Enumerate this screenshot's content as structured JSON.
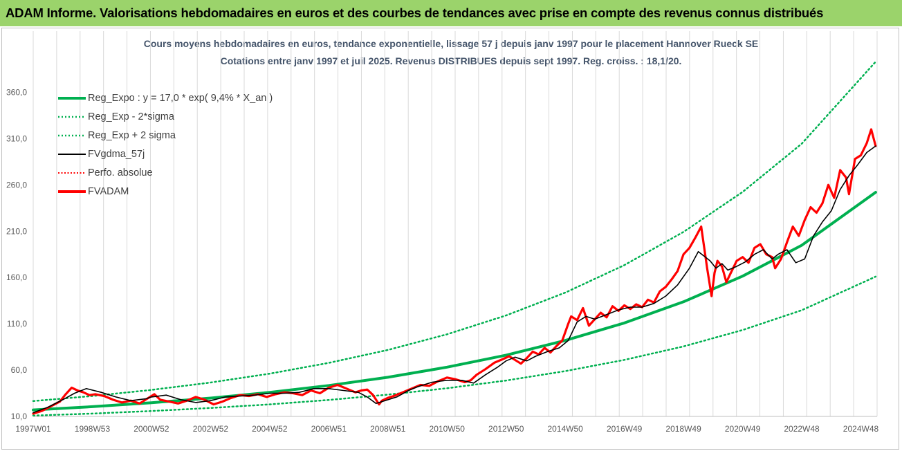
{
  "banner": {
    "title": "ADAM Informe. Valorisations hebdomadaires en euros et des courbes de tendances avec prise en compte des revenus connus distribués"
  },
  "colors": {
    "banner_bg": "#9bd36b",
    "trend_green": "#00b050",
    "price_red": "#ff0000",
    "smooth_black": "#000000",
    "title_text": "#44546a",
    "grid": "#d9d9d9"
  },
  "chart_data": {
    "type": "line",
    "title": "Cours moyens hebdomadaires en euros, tendance exponentielle, lissage 57 j depuis janv 1997  pour le placement Hannover Rueck SE",
    "subtitle": "Cotations entre janv 1997 et juil 2025. Revenus DISTRIBUES depuis sept 1997. Reg. croiss. : 18,1/20.",
    "xlabel": "",
    "ylabel": "",
    "ylim": [
      10,
      385
    ],
    "xlim": [
      1997.0,
      2025.55
    ],
    "grid": "vertical",
    "legend_position": "top-left",
    "y_ticks": [
      "10,0",
      "60,0",
      "110,0",
      "160,0",
      "210,0",
      "260,0",
      "310,0",
      "360,0"
    ],
    "y_tick_values": [
      10,
      60,
      110,
      160,
      210,
      260,
      310,
      360
    ],
    "x_ticks": [
      "1997W01",
      "1998W53",
      "2000W52",
      "2002W52",
      "2004W52",
      "2006W51",
      "2008W51",
      "2010W50",
      "2012W50",
      "2014W50",
      "2016W49",
      "2018W49",
      "2020W49",
      "2022W48",
      "2024W48"
    ],
    "x_tick_values": [
      1997.0,
      1999.0,
      2001.0,
      2003.0,
      2005.0,
      2007.0,
      2009.0,
      2011.0,
      2013.0,
      2015.0,
      2017.0,
      2019.0,
      2021.0,
      2023.0,
      2025.0
    ],
    "series": [
      {
        "name": "Reg_Expo : y = 17,0 * exp( 9,4% *  X_an )",
        "style": "solid-thick-green",
        "x": [
          1997.0,
          1999.0,
          2001.0,
          2003.0,
          2005.0,
          2007.0,
          2009.0,
          2011.0,
          2013.0,
          2015.0,
          2017.0,
          2019.0,
          2021.0,
          2023.0,
          2025.5
        ],
        "y": [
          17.0,
          20.5,
          24.7,
          29.8,
          36.0,
          43.4,
          52.3,
          63.2,
          76.2,
          92.0,
          110.9,
          133.8,
          161.5,
          194.8,
          252.0
        ]
      },
      {
        "name": "Reg_Exp - 2*sigma",
        "style": "dotted-green",
        "x": [
          1997.0,
          1999.0,
          2001.0,
          2003.0,
          2005.0,
          2007.0,
          2009.0,
          2011.0,
          2013.0,
          2015.0,
          2017.0,
          2019.0,
          2021.0,
          2023.0,
          2025.5
        ],
        "y": [
          10.9,
          13.1,
          15.8,
          19.1,
          23.0,
          27.8,
          33.5,
          40.4,
          48.8,
          58.9,
          71.0,
          85.6,
          103.3,
          124.7,
          161.0
        ]
      },
      {
        "name": "Reg_Exp + 2 sigma",
        "style": "dotted-green",
        "x": [
          1997.0,
          1999.0,
          2001.0,
          2003.0,
          2005.0,
          2007.0,
          2009.0,
          2011.0,
          2013.0,
          2015.0,
          2017.0,
          2019.0,
          2021.0,
          2023.0,
          2025.5
        ],
        "y": [
          26.6,
          32.0,
          38.6,
          46.6,
          56.2,
          67.8,
          81.8,
          98.7,
          119.1,
          143.7,
          173.4,
          209.2,
          252.4,
          304.5,
          393.0
        ]
      },
      {
        "name": "FVgdma_57j",
        "style": "solid-black",
        "x": [
          1997.0,
          1997.5,
          1998.0,
          1998.4,
          1998.8,
          1999.3,
          1999.8,
          2000.3,
          2000.8,
          2001.0,
          2001.5,
          2002.0,
          2002.5,
          2003.0,
          2003.5,
          2004.0,
          2004.5,
          2005.0,
          2005.5,
          2006.0,
          2006.5,
          2007.0,
          2007.5,
          2008.0,
          2008.3,
          2008.6,
          2008.9,
          2009.3,
          2009.7,
          2010.0,
          2010.5,
          2011.0,
          2011.5,
          2011.9,
          2012.3,
          2012.7,
          2013.0,
          2013.3,
          2013.7,
          2014.0,
          2014.4,
          2014.8,
          2015.1,
          2015.4,
          2015.7,
          2016.0,
          2016.4,
          2016.8,
          2017.2,
          2017.6,
          2018.0,
          2018.4,
          2018.8,
          2019.2,
          2019.5,
          2019.9,
          2020.1,
          2020.3,
          2020.5,
          2020.8,
          2021.1,
          2021.4,
          2021.7,
          2022.0,
          2022.2,
          2022.5,
          2022.8,
          2023.1,
          2023.4,
          2023.7,
          2024.0,
          2024.3,
          2024.6,
          2024.9,
          2025.2,
          2025.5
        ],
        "y": [
          14,
          20,
          28,
          35,
          40,
          36,
          31,
          27,
          29,
          31,
          33,
          28,
          25,
          27,
          31,
          32,
          33,
          35,
          35,
          36,
          40,
          40,
          38,
          36,
          31,
          24,
          27,
          31,
          38,
          42,
          47,
          49,
          49,
          46,
          55,
          63,
          70,
          74,
          70,
          75,
          80,
          84,
          92,
          112,
          118,
          115,
          120,
          125,
          128,
          128,
          132,
          140,
          152,
          170,
          188,
          178,
          170,
          175,
          168,
          172,
          177,
          185,
          190,
          180,
          185,
          190,
          176,
          180,
          205,
          220,
          232,
          255,
          270,
          282,
          295,
          302
        ]
      },
      {
        "name": "Perfo. absolue",
        "style": "dotted-red",
        "x": [],
        "y": []
      },
      {
        "name": "FVADAM",
        "style": "solid-thick-red",
        "x": [
          1997.0,
          1997.3,
          1997.6,
          1997.9,
          1998.1,
          1998.3,
          1998.5,
          1998.7,
          1998.9,
          1999.1,
          1999.4,
          1999.7,
          2000.0,
          2000.3,
          2000.6,
          2000.9,
          2001.1,
          2001.3,
          2001.6,
          2001.9,
          2002.2,
          2002.5,
          2002.8,
          2003.1,
          2003.4,
          2003.7,
          2004.0,
          2004.3,
          2004.6,
          2004.9,
          2005.2,
          2005.5,
          2005.8,
          2006.1,
          2006.4,
          2006.7,
          2007.0,
          2007.3,
          2007.6,
          2007.9,
          2008.1,
          2008.3,
          2008.5,
          2008.7,
          2008.8,
          2009.0,
          2009.2,
          2009.5,
          2009.8,
          2010.1,
          2010.4,
          2010.7,
          2011.0,
          2011.3,
          2011.6,
          2011.8,
          2012.0,
          2012.3,
          2012.6,
          2012.9,
          2013.1,
          2013.3,
          2013.5,
          2013.7,
          2013.9,
          2014.1,
          2014.3,
          2014.5,
          2014.7,
          2014.9,
          2015.1,
          2015.2,
          2015.4,
          2015.6,
          2015.8,
          2016.0,
          2016.2,
          2016.4,
          2016.6,
          2016.8,
          2017.0,
          2017.2,
          2017.4,
          2017.6,
          2017.8,
          2018.0,
          2018.2,
          2018.4,
          2018.6,
          2018.8,
          2019.0,
          2019.2,
          2019.4,
          2019.6,
          2019.8,
          2019.95,
          2020.05,
          2020.15,
          2020.3,
          2020.45,
          2020.6,
          2020.8,
          2021.0,
          2021.2,
          2021.4,
          2021.6,
          2021.8,
          2022.0,
          2022.1,
          2022.3,
          2022.5,
          2022.7,
          2022.9,
          2023.1,
          2023.3,
          2023.5,
          2023.7,
          2023.9,
          2024.1,
          2024.3,
          2024.5,
          2024.6,
          2024.8,
          2025.0,
          2025.2,
          2025.35,
          2025.5
        ],
        "y": [
          13,
          16,
          21,
          26,
          34,
          41,
          38,
          36,
          33,
          34,
          32,
          28,
          25,
          27,
          24,
          30,
          34,
          28,
          26,
          24,
          27,
          31,
          28,
          23,
          26,
          30,
          33,
          32,
          34,
          31,
          34,
          36,
          35,
          33,
          38,
          35,
          41,
          44,
          40,
          36,
          38,
          39,
          33,
          23,
          27,
          30,
          32,
          36,
          40,
          44,
          43,
          48,
          52,
          50,
          47,
          49,
          55,
          61,
          68,
          72,
          75,
          71,
          67,
          73,
          80,
          77,
          84,
          79,
          86,
          92,
          110,
          118,
          114,
          127,
          108,
          115,
          122,
          117,
          129,
          124,
          130,
          126,
          131,
          128,
          136,
          133,
          145,
          150,
          158,
          167,
          185,
          192,
          203,
          215,
          170,
          140,
          165,
          178,
          172,
          155,
          165,
          178,
          182,
          176,
          192,
          196,
          185,
          182,
          170,
          180,
          198,
          215,
          205,
          222,
          236,
          230,
          240,
          260,
          246,
          276,
          268,
          250,
          288,
          292,
          305,
          320,
          302
        ]
      }
    ]
  }
}
